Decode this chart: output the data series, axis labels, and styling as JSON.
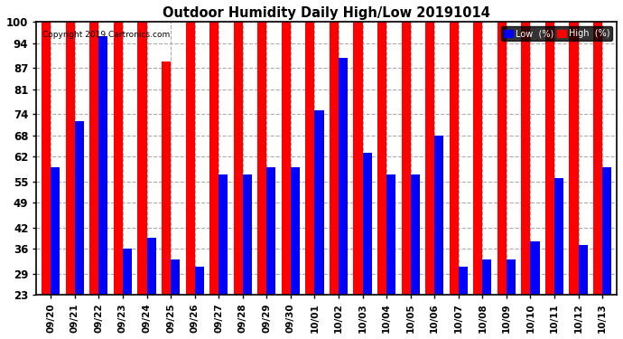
{
  "title": "Outdoor Humidity Daily High/Low 20191014",
  "copyright": "Copyright 2019 Cartronics.com",
  "dates": [
    "09/20",
    "09/21",
    "09/22",
    "09/23",
    "09/24",
    "09/25",
    "09/26",
    "09/27",
    "09/28",
    "09/29",
    "09/30",
    "10/01",
    "10/02",
    "10/03",
    "10/04",
    "10/05",
    "10/06",
    "10/07",
    "10/08",
    "10/09",
    "10/10",
    "10/11",
    "10/12",
    "10/13"
  ],
  "high_values": [
    100,
    100,
    100,
    100,
    100,
    89,
    100,
    100,
    100,
    100,
    100,
    100,
    100,
    100,
    100,
    100,
    100,
    100,
    100,
    100,
    100,
    100,
    100,
    100
  ],
  "low_values": [
    59,
    72,
    96,
    36,
    39,
    33,
    31,
    57,
    57,
    59,
    59,
    75,
    90,
    63,
    57,
    57,
    68,
    31,
    33,
    33,
    38,
    56,
    37,
    59
  ],
  "high_color": "#FF0000",
  "low_color": "#0000FF",
  "bg_color": "#FFFFFF",
  "grid_color": "#AAAAAA",
  "yticks": [
    23,
    29,
    36,
    42,
    49,
    55,
    62,
    68,
    74,
    81,
    87,
    94,
    100
  ],
  "ymin": 23,
  "ymax": 100,
  "legend_low_label": "Low  (%)",
  "legend_high_label": "High  (%)"
}
